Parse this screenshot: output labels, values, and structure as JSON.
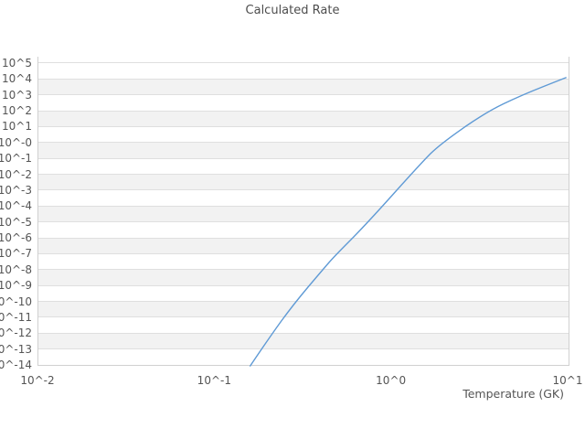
{
  "title": "Calculated Rate",
  "x_axis_label": "Temperature (GK)",
  "chart_data": {
    "type": "line",
    "title": "Calculated Rate",
    "xlabel": "Temperature (GK)",
    "ylabel": "",
    "x_scale": "log",
    "y_scale": "log",
    "xlim_log": [
      -2,
      1
    ],
    "ylim_log": [
      -14,
      5.4
    ],
    "grid": true,
    "band_shading": "alternating horizontal decade bands",
    "legend": "none",
    "x_ticks": [
      {
        "label": "10^-2",
        "log": -2
      },
      {
        "label": "10^-1",
        "log": -1
      },
      {
        "label": "10^0",
        "log": 0
      },
      {
        "label": "10^1",
        "log": 1
      }
    ],
    "y_ticks": [
      {
        "label": "10^5",
        "log": 5
      },
      {
        "label": "10^4",
        "log": 4
      },
      {
        "label": "10^3",
        "log": 3
      },
      {
        "label": "10^2",
        "log": 2
      },
      {
        "label": "10^1",
        "log": 1
      },
      {
        "label": "10^-0",
        "log": 0
      },
      {
        "label": "10^-1",
        "log": -1
      },
      {
        "label": "10^-2",
        "log": -2
      },
      {
        "label": "10^-3",
        "log": -3
      },
      {
        "label": "10^-4",
        "log": -4
      },
      {
        "label": "10^-5",
        "log": -5
      },
      {
        "label": "10^-6",
        "log": -6
      },
      {
        "label": "10^-7",
        "log": -7
      },
      {
        "label": "10^-8",
        "log": -8
      },
      {
        "label": "10^-9",
        "log": -9
      },
      {
        "label": "10^-10",
        "log": -10
      },
      {
        "label": "10^-11",
        "log": -11
      },
      {
        "label": "10^-12",
        "log": -12
      },
      {
        "label": "10^-13",
        "log": -13
      },
      {
        "label": "10^-14",
        "log": -14
      }
    ],
    "series": [
      {
        "name": "calculated-rate",
        "x": [
          0.158,
          0.201,
          0.277,
          0.406,
          0.474,
          0.719,
          1.47,
          1.87,
          3.39,
          5.45,
          9.66
        ],
        "y": [
          8.7e-15,
          4.7e-13,
          6.3e-11,
          9.7e-09,
          7.1e-08,
          7.4e-06,
          0.053,
          0.76,
          78,
          970,
          12000
        ]
      }
    ],
    "colors": {
      "line": "#5F9AD5",
      "band_gray": "#f2f2f2",
      "gridline": "#dfdfdf",
      "border": "#d0d0d0",
      "text": "#555555",
      "title_text": "#4d4d4d",
      "background": "#ffffff"
    }
  }
}
